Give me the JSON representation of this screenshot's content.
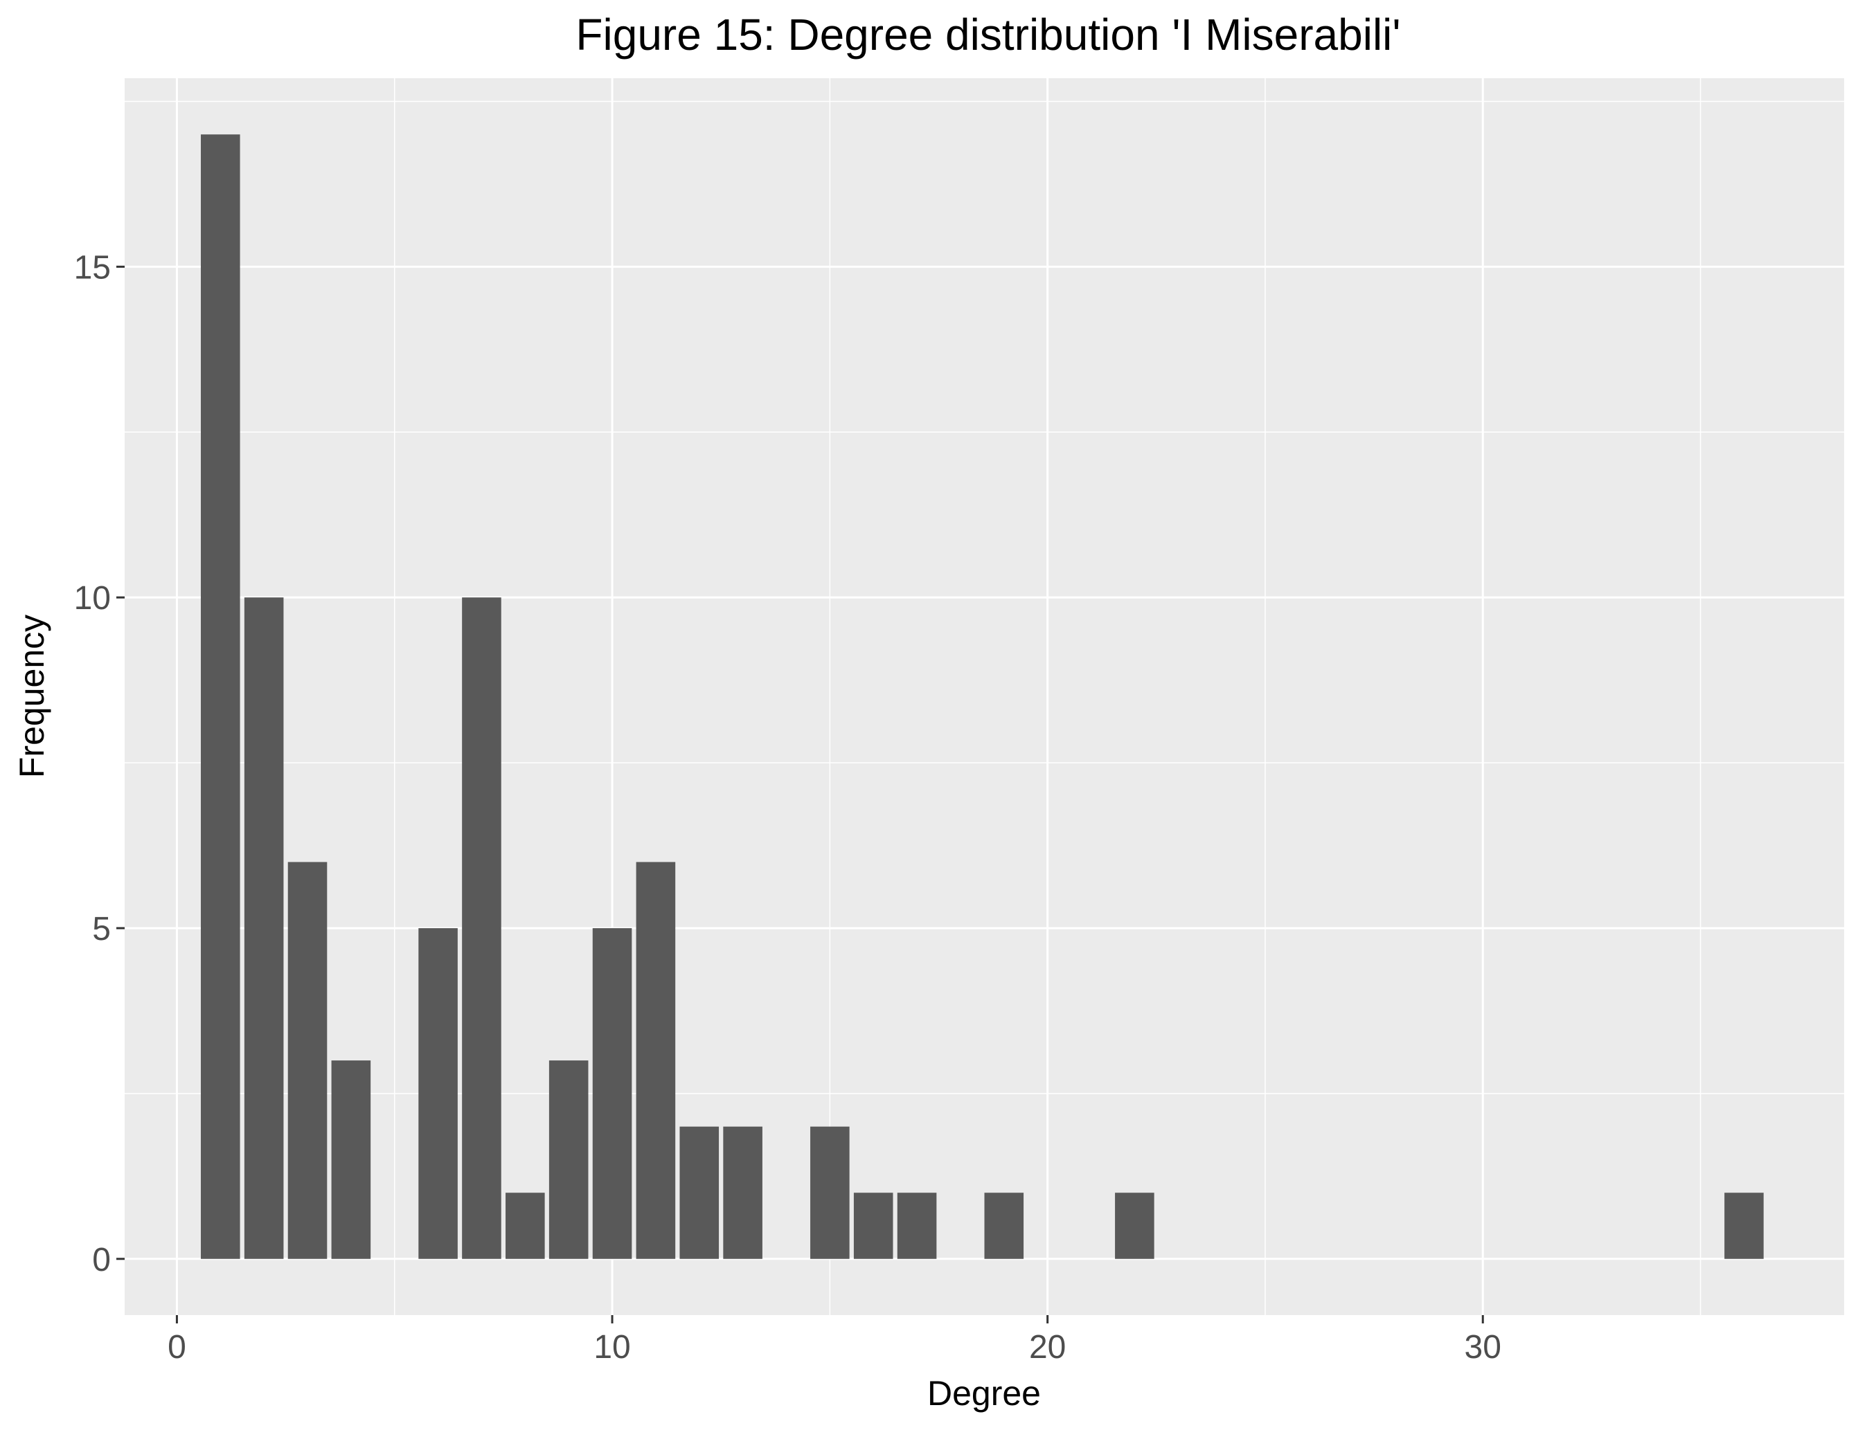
{
  "chart_data": {
    "type": "bar",
    "title": "Figure 15: Degree distribution 'I Miserabili'",
    "xlabel": "Degree",
    "ylabel": "Frequency",
    "x": [
      1,
      2,
      3,
      4,
      6,
      7,
      8,
      9,
      10,
      11,
      12,
      13,
      15,
      16,
      17,
      19,
      22,
      36
    ],
    "values": [
      17,
      10,
      6,
      3,
      5,
      10,
      1,
      3,
      5,
      6,
      2,
      2,
      2,
      1,
      1,
      1,
      1,
      1
    ],
    "xlim": [
      -1.2,
      38.3
    ],
    "ylim": [
      -0.85,
      17.85
    ],
    "x_ticks": [
      0,
      10,
      20,
      30
    ],
    "y_ticks": [
      0,
      5,
      10,
      15
    ],
    "x_minor_gridlines": [
      5,
      15,
      25,
      35
    ],
    "y_minor_gridlines": [
      2.5,
      7.5,
      12.5,
      17.5
    ],
    "grid": true,
    "legend": "none",
    "colors": {
      "bar_fill": "#595959",
      "panel_background": "#ebebeb",
      "gridline": "#ffffff",
      "tick_label": "#4d4d4d",
      "title": "#000000"
    }
  }
}
